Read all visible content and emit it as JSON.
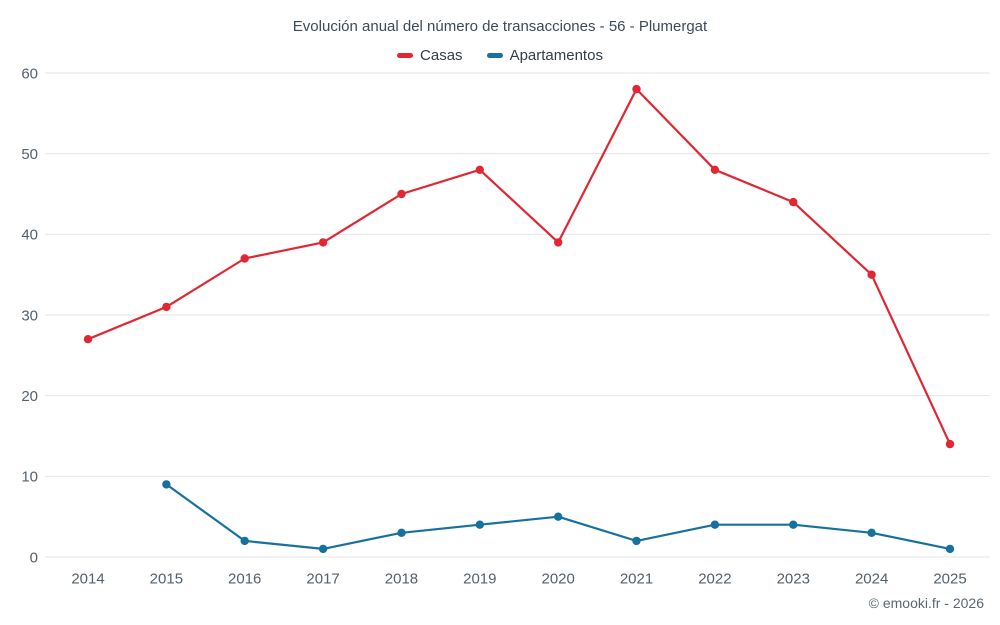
{
  "chart": {
    "title": "Evolución anual del número de transacciones - 56 - Plumergat",
    "footer": "© emooki.fr - 2026"
  },
  "chart_data": {
    "type": "line",
    "title": "Evolución anual del número de transacciones - 56 - Plumergat",
    "categories": [
      "2014",
      "2015",
      "2016",
      "2017",
      "2018",
      "2019",
      "2020",
      "2021",
      "2022",
      "2023",
      "2024",
      "2025"
    ],
    "series": [
      {
        "name": "Casas",
        "color": "#e02732",
        "values": [
          27,
          31,
          37,
          39,
          45,
          48,
          39,
          58,
          48,
          44,
          35,
          14
        ]
      },
      {
        "name": "Apartamentos",
        "color": "#17719e",
        "values": [
          null,
          9,
          2,
          1,
          3,
          4,
          5,
          2,
          4,
          4,
          3,
          1
        ]
      }
    ],
    "xlabel": "",
    "ylabel": "",
    "ylim": [
      0,
      60
    ],
    "ytick_step": 10,
    "grid": true,
    "legend_position": "top"
  }
}
